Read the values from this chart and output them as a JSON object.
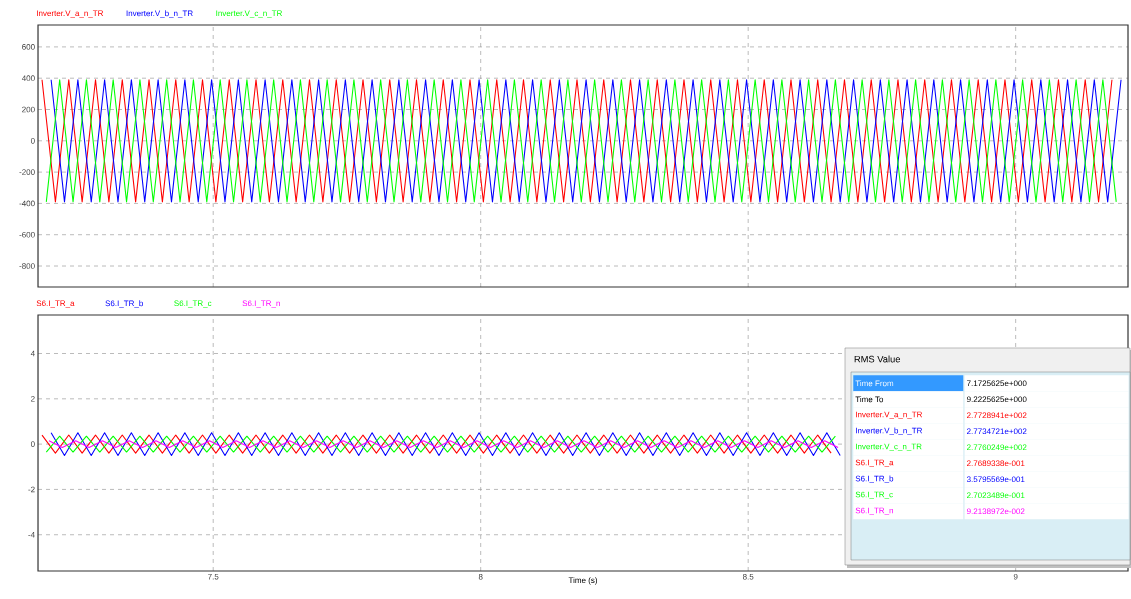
{
  "chart_data": [
    {
      "type": "line",
      "legend": "top left",
      "grid": true,
      "tick_labels": "y",
      "xlim": [
        7.1725,
        9.21
      ],
      "ylim": [
        -934,
        740
      ],
      "xticks": [
        7.5,
        8,
        8.5,
        9
      ],
      "yticks": [
        -800,
        -600,
        -400,
        -200,
        0,
        200,
        400,
        600
      ],
      "series": [
        {
          "name": "Inverter.V_a_n_TR",
          "color": "#ff0000",
          "x": [
            7.18,
            7.205,
            7.23,
            7.255,
            7.28,
            7.305,
            7.33,
            7.355,
            7.38,
            7.405,
            7.43,
            7.455,
            7.48,
            7.505,
            7.53,
            7.555,
            7.58,
            7.605,
            7.63,
            7.655,
            7.68,
            7.705,
            7.73,
            7.755,
            7.78,
            7.805,
            7.83,
            7.855,
            7.88,
            7.905,
            7.93,
            7.955,
            7.98,
            8.005,
            8.03,
            8.055,
            8.08,
            8.105,
            8.13,
            8.155,
            8.18,
            8.205,
            8.23,
            8.255,
            8.28,
            8.305,
            8.33,
            8.355,
            8.38,
            8.405,
            8.43,
            8.455,
            8.48,
            8.505,
            8.53,
            8.555,
            8.58,
            8.605,
            8.63,
            8.655,
            8.68,
            8.705,
            8.73,
            8.755,
            8.78,
            8.805,
            8.83,
            8.855,
            8.88,
            8.905,
            8.93,
            8.955,
            8.98,
            9.005,
            9.03,
            9.055,
            9.08,
            9.105,
            9.13,
            9.155,
            9.18
          ],
          "values": [
            390,
            -390,
            390,
            -390,
            390,
            -390,
            390,
            -390,
            390,
            -390,
            390,
            -390,
            390,
            -390,
            390,
            -390,
            390,
            -390,
            390,
            -390,
            390,
            -390,
            390,
            -390,
            390,
            -390,
            390,
            -390,
            390,
            -390,
            390,
            -390,
            390,
            -390,
            390,
            -390,
            390,
            -390,
            390,
            -390,
            390,
            -390,
            390,
            -390,
            390,
            -390,
            390,
            -390,
            390,
            -390,
            390,
            -390,
            390,
            -390,
            390,
            -390,
            390,
            -390,
            390,
            -390,
            390,
            -390,
            390,
            -390,
            390,
            -390,
            390,
            -390,
            390,
            -390,
            390,
            -390,
            390,
            -390,
            390,
            -390,
            390,
            -390,
            390,
            -390,
            390
          ]
        },
        {
          "name": "Inverter.V_b_n_TR",
          "color": "#0000ff",
          "x": [
            7.197,
            7.222,
            7.247,
            7.272,
            7.297,
            7.322,
            7.347,
            7.372,
            7.397,
            7.422,
            7.447,
            7.472,
            7.497,
            7.522,
            7.547,
            7.572,
            7.597,
            7.622,
            7.647,
            7.672,
            7.697,
            7.722,
            7.747,
            7.772,
            7.797,
            7.822,
            7.847,
            7.872,
            7.897,
            7.922,
            7.947,
            7.972,
            7.997,
            8.022,
            8.047,
            8.072,
            8.097,
            8.122,
            8.147,
            8.172,
            8.197,
            8.222,
            8.247,
            8.272,
            8.297,
            8.322,
            8.347,
            8.372,
            8.397,
            8.422,
            8.447,
            8.472,
            8.497,
            8.522,
            8.547,
            8.572,
            8.597,
            8.622,
            8.647,
            8.672,
            8.697,
            8.722,
            8.747,
            8.772,
            8.797,
            8.822,
            8.847,
            8.872,
            8.897,
            8.922,
            8.947,
            8.972,
            8.997,
            9.022,
            9.047,
            9.072,
            9.097,
            9.122,
            9.147,
            9.172,
            9.197
          ],
          "values": [
            390,
            -390,
            390,
            -390,
            390,
            -390,
            390,
            -390,
            390,
            -390,
            390,
            -390,
            390,
            -390,
            390,
            -390,
            390,
            -390,
            390,
            -390,
            390,
            -390,
            390,
            -390,
            390,
            -390,
            390,
            -390,
            390,
            -390,
            390,
            -390,
            390,
            -390,
            390,
            -390,
            390,
            -390,
            390,
            -390,
            390,
            -390,
            390,
            -390,
            390,
            -390,
            390,
            -390,
            390,
            -390,
            390,
            -390,
            390,
            -390,
            390,
            -390,
            390,
            -390,
            390,
            -390,
            390,
            -390,
            390,
            -390,
            390,
            -390,
            390,
            -390,
            390,
            -390,
            390,
            -390,
            390,
            -390,
            390,
            -390,
            390,
            -390,
            390,
            -390,
            390
          ]
        },
        {
          "name": "Inverter.V_c_n_TR",
          "color": "#00ff00",
          "x": [
            7.188,
            7.213,
            7.238,
            7.263,
            7.288,
            7.313,
            7.338,
            7.363,
            7.388,
            7.413,
            7.438,
            7.463,
            7.488,
            7.513,
            7.538,
            7.563,
            7.588,
            7.613,
            7.638,
            7.663,
            7.688,
            7.713,
            7.738,
            7.763,
            7.788,
            7.813,
            7.838,
            7.863,
            7.888,
            7.913,
            7.938,
            7.963,
            7.988,
            8.013,
            8.038,
            8.063,
            8.088,
            8.113,
            8.138,
            8.163,
            8.188,
            8.213,
            8.238,
            8.263,
            8.288,
            8.313,
            8.338,
            8.363,
            8.388,
            8.413,
            8.438,
            8.463,
            8.488,
            8.513,
            8.538,
            8.563,
            8.588,
            8.613,
            8.638,
            8.663,
            8.688,
            8.713,
            8.738,
            8.763,
            8.788,
            8.813,
            8.838,
            8.863,
            8.888,
            8.913,
            8.938,
            8.963,
            8.988,
            9.013,
            9.038,
            9.063,
            9.088,
            9.113,
            9.138,
            9.163,
            9.188
          ],
          "values": [
            -390,
            390,
            -390,
            390,
            -390,
            390,
            -390,
            390,
            -390,
            390,
            -390,
            390,
            -390,
            390,
            -390,
            390,
            -390,
            390,
            -390,
            390,
            -390,
            390,
            -390,
            390,
            -390,
            390,
            -390,
            390,
            -390,
            390,
            -390,
            390,
            -390,
            390,
            -390,
            390,
            -390,
            390,
            -390,
            390,
            -390,
            390,
            -390,
            390,
            -390,
            390,
            -390,
            390,
            -390,
            390,
            -390,
            390,
            -390,
            390,
            -390,
            390,
            -390,
            390,
            -390,
            390,
            -390,
            390,
            -390,
            390,
            -390,
            390,
            -390,
            390,
            -390,
            390,
            -390,
            390,
            -390,
            390,
            -390,
            390,
            -390,
            390,
            -390,
            390,
            -390
          ]
        }
      ]
    },
    {
      "type": "line",
      "legend": "top left",
      "grid": true,
      "xlabel": "Time (s)",
      "xlim": [
        7.1725,
        9.21
      ],
      "ylim": [
        -5.6,
        5.7
      ],
      "xticks": [
        7.5,
        8,
        8.5,
        9
      ],
      "yticks": [
        -4,
        -2,
        0,
        2,
        4
      ],
      "series": [
        {
          "name": "S6.I_TR_a",
          "color": "#ff0000",
          "x": [
            7.18,
            7.205,
            7.23,
            7.255,
            7.28,
            7.305,
            7.33,
            7.355,
            7.38,
            7.405,
            7.43,
            7.455,
            7.48,
            7.505,
            7.53,
            7.555,
            7.58,
            7.605,
            7.63,
            7.655,
            7.68,
            7.705,
            7.73,
            7.755,
            7.78,
            7.805,
            7.83,
            7.855,
            7.88,
            7.905,
            7.93,
            7.955,
            7.98,
            8.005,
            8.03,
            8.055,
            8.08,
            8.105,
            8.13,
            8.155,
            8.18,
            8.205,
            8.23,
            8.255,
            8.28,
            8.305,
            8.33,
            8.355,
            8.38,
            8.405,
            8.43,
            8.455,
            8.48,
            8.505,
            8.53,
            8.555,
            8.58,
            8.605,
            8.63,
            8.655
          ],
          "values": [
            0.4,
            -0.4,
            0.4,
            -0.4,
            0.4,
            -0.4,
            0.4,
            -0.4,
            0.4,
            -0.4,
            0.4,
            -0.4,
            0.4,
            -0.4,
            0.4,
            -0.4,
            0.4,
            -0.4,
            0.4,
            -0.4,
            0.4,
            -0.4,
            0.4,
            -0.4,
            0.4,
            -0.4,
            0.4,
            -0.4,
            0.4,
            -0.4,
            0.4,
            -0.4,
            0.4,
            -0.4,
            0.4,
            -0.4,
            0.4,
            -0.4,
            0.4,
            -0.4,
            0.4,
            -0.4,
            0.4,
            -0.4,
            0.4,
            -0.4,
            0.4,
            -0.4,
            0.4,
            -0.4,
            0.4,
            -0.4,
            0.4,
            -0.4,
            0.4,
            -0.4,
            0.4,
            -0.4,
            0.4,
            -0.4
          ]
        },
        {
          "name": "S6.I_TR_b",
          "color": "#0000ff",
          "x": [
            7.197,
            7.222,
            7.247,
            7.272,
            7.297,
            7.322,
            7.347,
            7.372,
            7.397,
            7.422,
            7.447,
            7.472,
            7.497,
            7.522,
            7.547,
            7.572,
            7.597,
            7.622,
            7.647,
            7.672,
            7.697,
            7.722,
            7.747,
            7.772,
            7.797,
            7.822,
            7.847,
            7.872,
            7.897,
            7.922,
            7.947,
            7.972,
            7.997,
            8.022,
            8.047,
            8.072,
            8.097,
            8.122,
            8.147,
            8.172,
            8.197,
            8.222,
            8.247,
            8.272,
            8.297,
            8.322,
            8.347,
            8.372,
            8.397,
            8.422,
            8.447,
            8.472,
            8.497,
            8.522,
            8.547,
            8.572,
            8.597,
            8.622,
            8.647,
            8.672
          ],
          "values": [
            0.5,
            -0.5,
            0.5,
            -0.5,
            0.5,
            -0.5,
            0.5,
            -0.5,
            0.5,
            -0.5,
            0.5,
            -0.5,
            0.5,
            -0.5,
            0.5,
            -0.5,
            0.5,
            -0.5,
            0.5,
            -0.5,
            0.5,
            -0.5,
            0.5,
            -0.5,
            0.5,
            -0.5,
            0.5,
            -0.5,
            0.5,
            -0.5,
            0.5,
            -0.5,
            0.5,
            -0.5,
            0.5,
            -0.5,
            0.5,
            -0.5,
            0.5,
            -0.5,
            0.5,
            -0.5,
            0.5,
            -0.5,
            0.5,
            -0.5,
            0.5,
            -0.5,
            0.5,
            -0.5,
            0.5,
            -0.5,
            0.5,
            -0.5,
            0.5,
            -0.5,
            0.5,
            -0.5,
            0.5,
            -0.5
          ]
        },
        {
          "name": "S6.I_TR_c",
          "color": "#00ff00",
          "x": [
            7.188,
            7.213,
            7.238,
            7.263,
            7.288,
            7.313,
            7.338,
            7.363,
            7.388,
            7.413,
            7.438,
            7.463,
            7.488,
            7.513,
            7.538,
            7.563,
            7.588,
            7.613,
            7.638,
            7.663,
            7.688,
            7.713,
            7.738,
            7.763,
            7.788,
            7.813,
            7.838,
            7.863,
            7.888,
            7.913,
            7.938,
            7.963,
            7.988,
            8.013,
            8.038,
            8.063,
            8.088,
            8.113,
            8.138,
            8.163,
            8.188,
            8.213,
            8.238,
            8.263,
            8.288,
            8.313,
            8.338,
            8.363,
            8.388,
            8.413,
            8.438,
            8.463,
            8.488,
            8.513,
            8.538,
            8.563,
            8.588,
            8.613,
            8.638,
            8.663
          ],
          "values": [
            -0.35,
            0.35,
            -0.35,
            0.35,
            -0.35,
            0.35,
            -0.35,
            0.35,
            -0.35,
            0.35,
            -0.35,
            0.35,
            -0.35,
            0.35,
            -0.35,
            0.35,
            -0.35,
            0.35,
            -0.35,
            0.35,
            -0.35,
            0.35,
            -0.35,
            0.35,
            -0.35,
            0.35,
            -0.35,
            0.35,
            -0.35,
            0.35,
            -0.35,
            0.35,
            -0.35,
            0.35,
            -0.35,
            0.35,
            -0.35,
            0.35,
            -0.35,
            0.35,
            -0.35,
            0.35,
            -0.35,
            0.35,
            -0.35,
            0.35,
            -0.35,
            0.35,
            -0.35,
            0.35,
            -0.35,
            0.35,
            -0.35,
            0.35,
            -0.35,
            0.35,
            -0.35,
            0.35,
            -0.35,
            0.35
          ]
        },
        {
          "name": "S6.I_TR_n",
          "color": "#ff00ff",
          "x": [
            7.193,
            7.218,
            7.243,
            7.268,
            7.293,
            7.318,
            7.343,
            7.368,
            7.393,
            7.418,
            7.443,
            7.468,
            7.493,
            7.518,
            7.543,
            7.568,
            7.593,
            7.618,
            7.643,
            7.668,
            7.693,
            7.718,
            7.743,
            7.768,
            7.793,
            7.818,
            7.843,
            7.868,
            7.893,
            7.918,
            7.943,
            7.968,
            7.993,
            8.018,
            8.043,
            8.068,
            8.093,
            8.118,
            8.143,
            8.168,
            8.193,
            8.218,
            8.243,
            8.268,
            8.293,
            8.318,
            8.343,
            8.368,
            8.393,
            8.418,
            8.443,
            8.468,
            8.493,
            8.518,
            8.543,
            8.568,
            8.593,
            8.618,
            8.643,
            8.668
          ],
          "values": [
            0.15,
            -0.15,
            0.15,
            -0.15,
            0.15,
            -0.15,
            0.15,
            -0.15,
            0.15,
            -0.15,
            0.15,
            -0.15,
            0.15,
            -0.15,
            0.15,
            -0.15,
            0.15,
            -0.15,
            0.15,
            -0.15,
            0.15,
            -0.15,
            0.15,
            -0.15,
            0.15,
            -0.15,
            0.15,
            -0.15,
            0.15,
            -0.15,
            0.15,
            -0.15,
            0.15,
            -0.15,
            0.15,
            -0.15,
            0.15,
            -0.15,
            0.15,
            -0.15,
            0.15,
            -0.15,
            0.15,
            -0.15,
            0.15,
            -0.15,
            0.15,
            -0.15,
            0.15,
            -0.15,
            0.15,
            -0.15,
            0.15,
            -0.15,
            0.15,
            -0.15,
            0.15,
            -0.15,
            0.15,
            -0.15
          ]
        }
      ],
      "annotations": [
        "RMS Value",
        "Time    From",
        "7.1725625e+000",
        "Time    To",
        "9.2225625e+000",
        "2.7728941e+002",
        "2.7734721e+002",
        "2.7760249e+002",
        "2.7689338e-001",
        "3.5795569e-001",
        "2.7023489e-001",
        "9.2138972e-002",
        "Inverter.V_a_n_TR",
        "Inverter.V_b_n_TR",
        "Inverter.V_c_n_TR",
        "S6.I_TR_a",
        "S6.I_TR_b",
        "S6.I_TR_c",
        "S6.I_TR_n"
      ]
    }
  ]
}
